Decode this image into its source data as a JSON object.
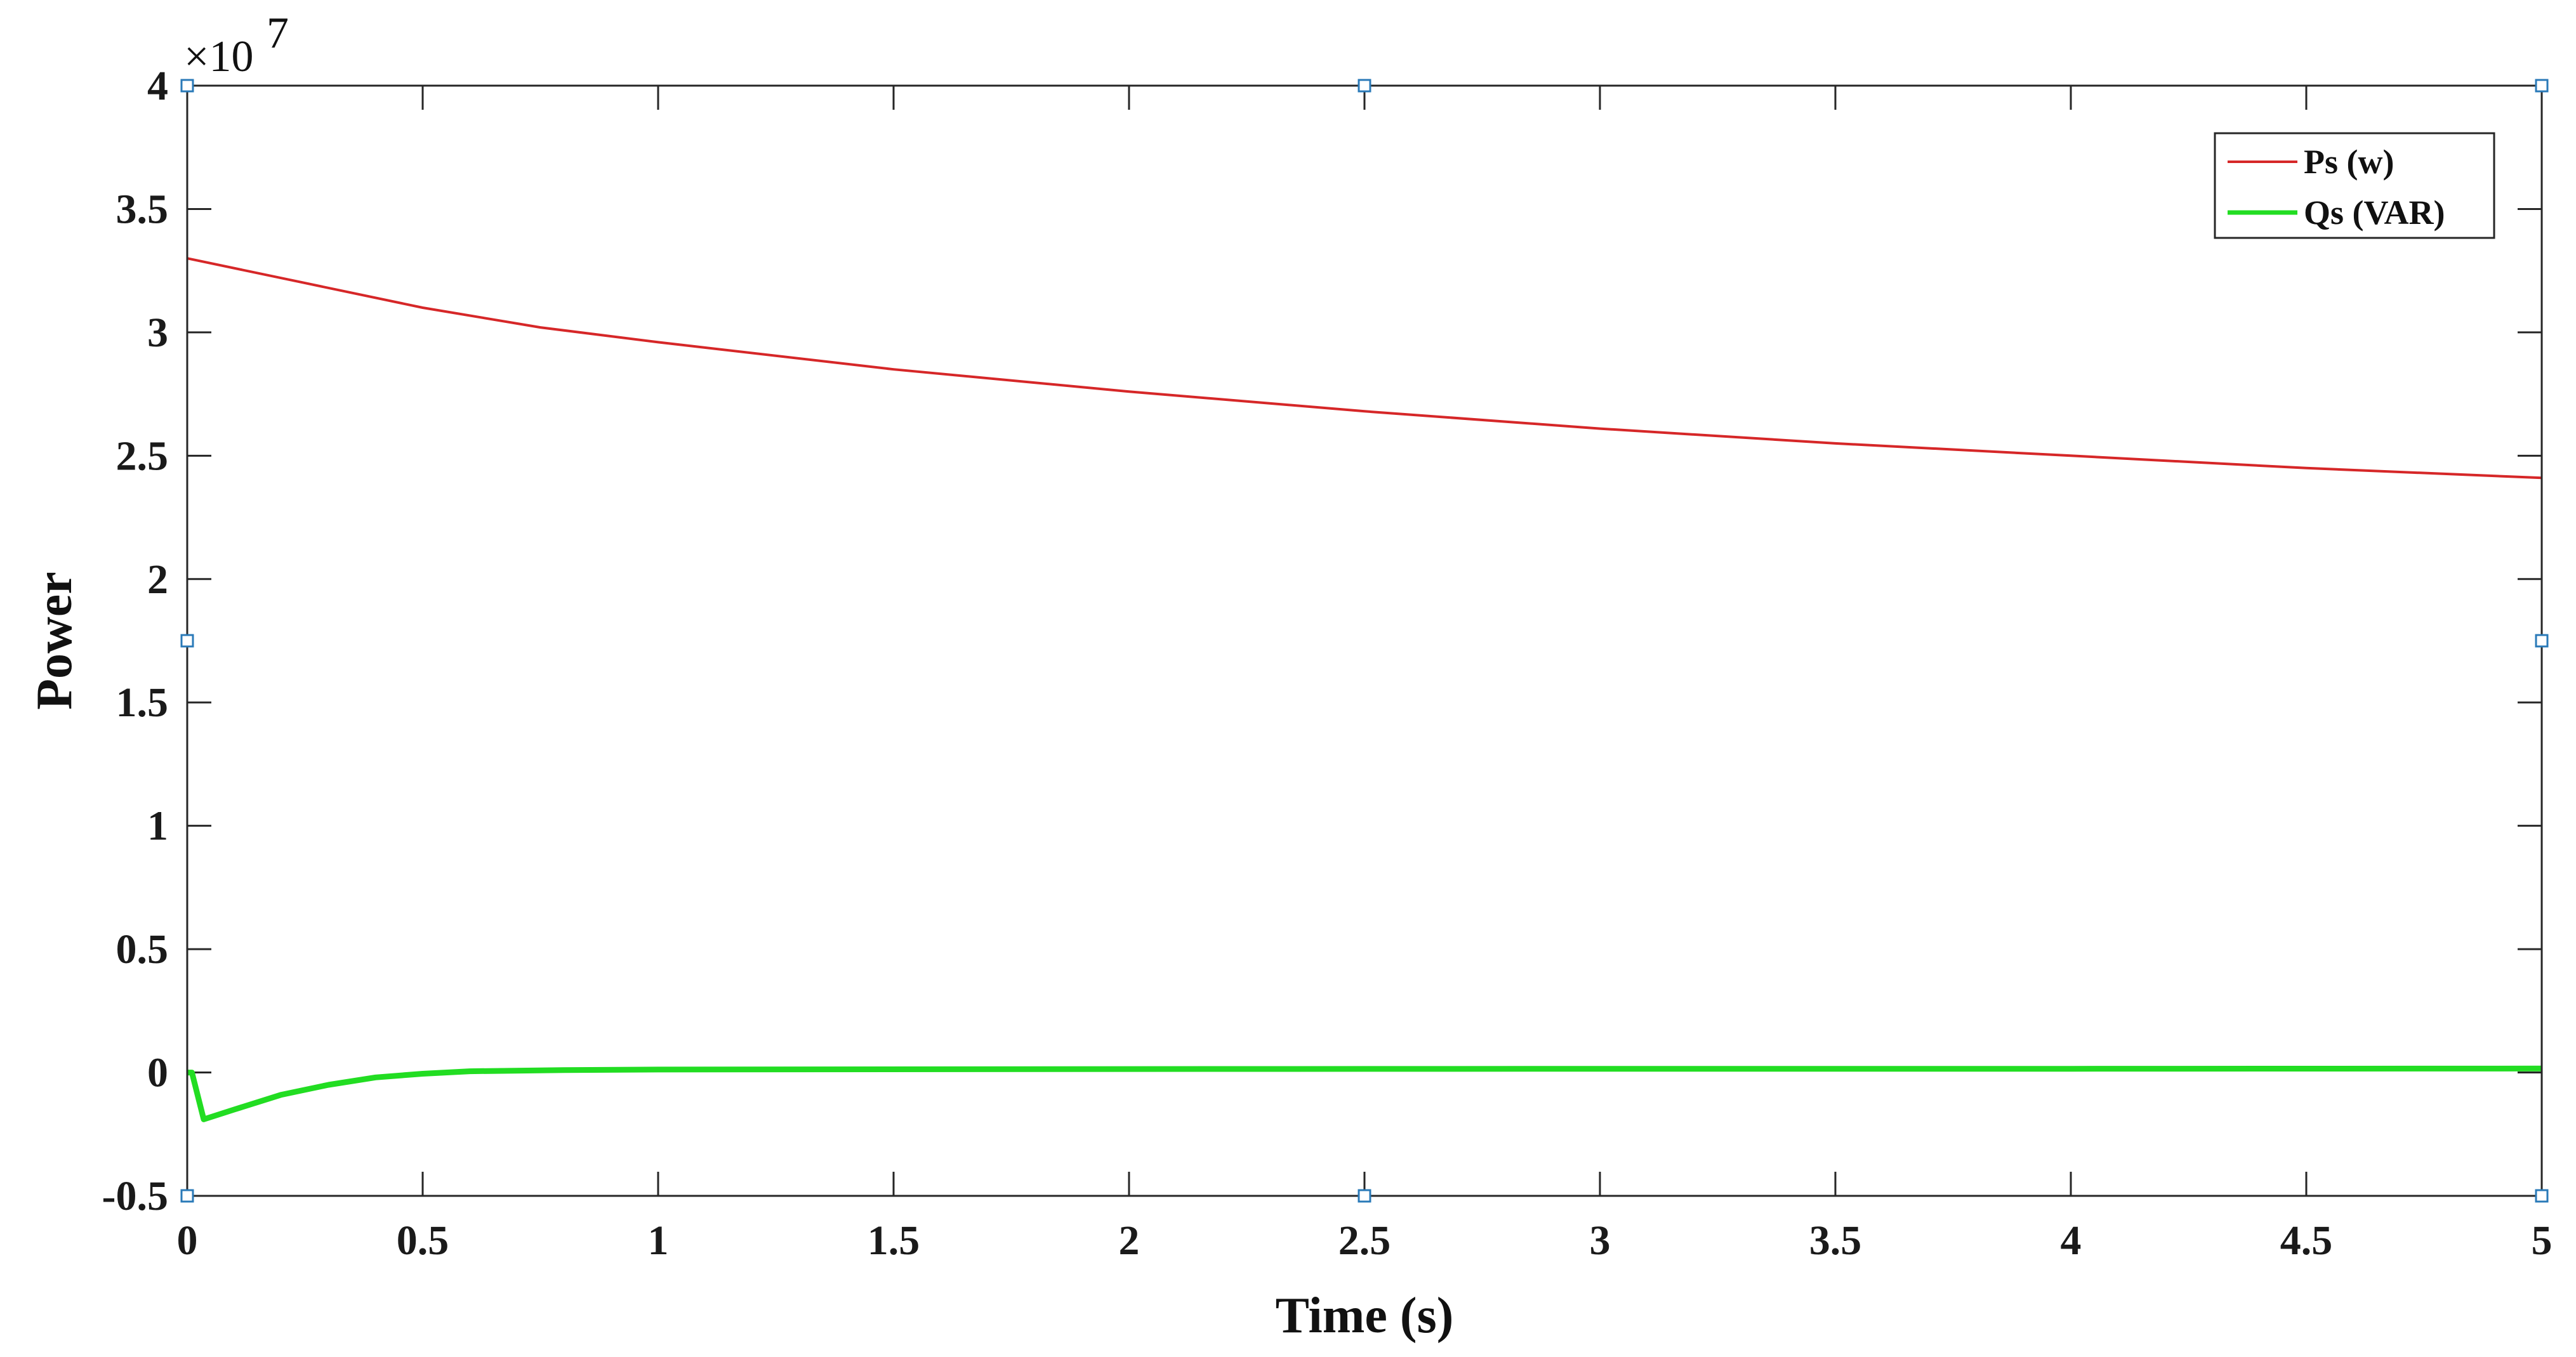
{
  "chart_data": {
    "type": "line",
    "title": "",
    "xlabel": "Time (s)",
    "ylabel": "Power",
    "y_exponent_label": "×10",
    "y_exponent_power": "7",
    "xlim": [
      0,
      5
    ],
    "ylim": [
      -0.5,
      4
    ],
    "x_ticks": [
      0,
      0.5,
      1,
      1.5,
      2,
      2.5,
      3,
      3.5,
      4,
      4.5,
      5
    ],
    "x_tick_labels": [
      "0",
      "0.5",
      "1",
      "1.5",
      "2",
      "2.5",
      "3",
      "3.5",
      "4",
      "4.5",
      "5"
    ],
    "y_ticks": [
      -0.5,
      0,
      0.5,
      1,
      1.5,
      2,
      2.5,
      3,
      3.5,
      4
    ],
    "y_tick_labels": [
      "-0.5",
      "0",
      "0.5",
      "1",
      "1.5",
      "2",
      "2.5",
      "3",
      "3.5",
      "4"
    ],
    "grid": false,
    "legend_position": "top-right",
    "series": [
      {
        "name": "Ps (w)",
        "color": "#d62728",
        "x": [
          0,
          0.25,
          0.5,
          0.75,
          1,
          1.5,
          2,
          2.5,
          3,
          3.5,
          4,
          4.5,
          5
        ],
        "y": [
          3.3,
          3.2,
          3.1,
          3.02,
          2.96,
          2.85,
          2.76,
          2.68,
          2.61,
          2.55,
          2.5,
          2.45,
          2.41
        ]
      },
      {
        "name": "Qs (VAR)",
        "color": "#22dd22",
        "x": [
          0,
          0.01,
          0.035,
          0.1,
          0.2,
          0.3,
          0.4,
          0.5,
          0.6,
          0.8,
          1,
          2,
          3,
          4,
          5
        ],
        "y": [
          0.0,
          0.0,
          -0.19,
          -0.15,
          -0.09,
          -0.05,
          -0.02,
          -0.005,
          0.005,
          0.01,
          0.012,
          0.014,
          0.015,
          0.015,
          0.016
        ]
      }
    ]
  }
}
